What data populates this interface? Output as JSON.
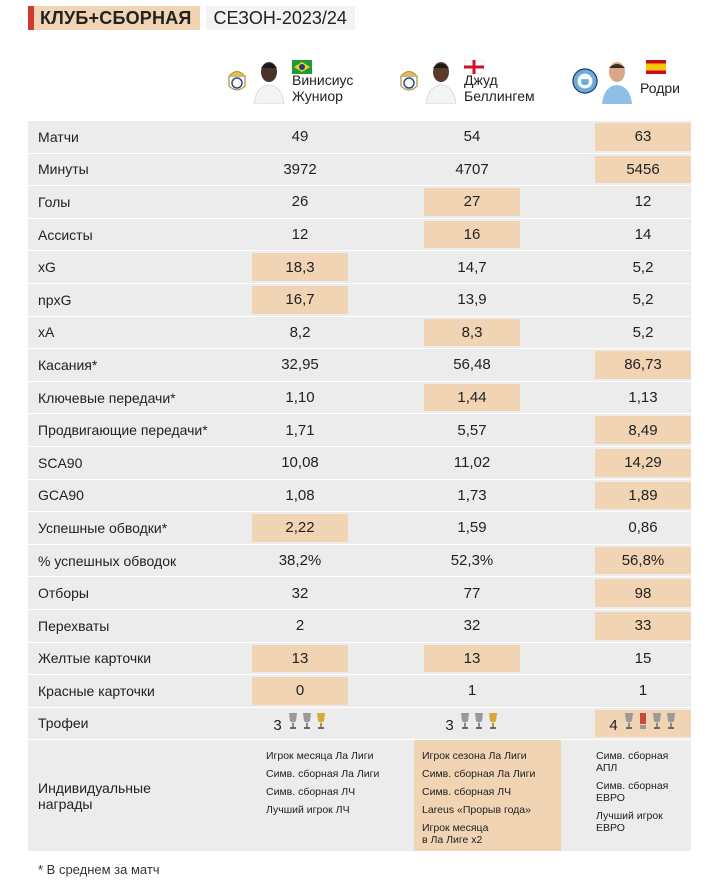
{
  "header": {
    "title": "КЛУБ+СБОРНАЯ",
    "season": "СЕЗОН-2023/24"
  },
  "players": [
    {
      "name_line1": "Винисиус",
      "name_line2": "Жуниор",
      "club": "Real Madrid",
      "flag": "brazil"
    },
    {
      "name_line1": "Джуд",
      "name_line2": "Беллингем",
      "club": "Real Madrid",
      "flag": "england"
    },
    {
      "name_line1": "Родри",
      "name_line2": "",
      "club": "Manchester City",
      "flag": "spain"
    }
  ],
  "rows": [
    {
      "label": "Матчи",
      "values": [
        "49",
        "54",
        "63"
      ],
      "hl": [
        false,
        false,
        true
      ]
    },
    {
      "label": "Минуты",
      "values": [
        "3972",
        "4707",
        "5456"
      ],
      "hl": [
        false,
        false,
        true
      ]
    },
    {
      "label": "Голы",
      "values": [
        "26",
        "27",
        "12"
      ],
      "hl": [
        false,
        true,
        false
      ]
    },
    {
      "label": "Ассисты",
      "values": [
        "12",
        "16",
        "14"
      ],
      "hl": [
        false,
        true,
        false
      ]
    },
    {
      "label": "xG",
      "values": [
        "18,3",
        "14,7",
        "5,2"
      ],
      "hl": [
        true,
        false,
        false
      ]
    },
    {
      "label": "npxG",
      "values": [
        "16,7",
        "13,9",
        "5,2"
      ],
      "hl": [
        true,
        false,
        false
      ]
    },
    {
      "label": "xA",
      "values": [
        "8,2",
        "8,3",
        "5,2"
      ],
      "hl": [
        false,
        true,
        false
      ]
    },
    {
      "label": "Касания*",
      "values": [
        "32,95",
        "56,48",
        "86,73"
      ],
      "hl": [
        false,
        false,
        true
      ]
    },
    {
      "label": "Ключевые передачи*",
      "values": [
        "1,10",
        "1,44",
        "1,13"
      ],
      "hl": [
        false,
        true,
        false
      ]
    },
    {
      "label": "Продвигающие передачи*",
      "values": [
        "1,71",
        "5,57",
        "8,49"
      ],
      "hl": [
        false,
        false,
        true
      ]
    },
    {
      "label": "SCA90",
      "values": [
        "10,08",
        "11,02",
        "14,29"
      ],
      "hl": [
        false,
        false,
        true
      ]
    },
    {
      "label": "GCA90",
      "values": [
        "1,08",
        "1,73",
        "1,89"
      ],
      "hl": [
        false,
        false,
        true
      ]
    },
    {
      "label": "Успешные обводки*",
      "values": [
        "2,22",
        "1,59",
        "0,86"
      ],
      "hl": [
        true,
        false,
        false
      ]
    },
    {
      "label": "% успешных обводок",
      "values": [
        "38,2%",
        "52,3%",
        "56,8%"
      ],
      "hl": [
        false,
        false,
        true
      ]
    },
    {
      "label": "Отборы",
      "values": [
        "32",
        "77",
        "98"
      ],
      "hl": [
        false,
        false,
        true
      ]
    },
    {
      "label": "Перехваты",
      "values": [
        "2",
        "32",
        "33"
      ],
      "hl": [
        false,
        false,
        true
      ]
    },
    {
      "label": "Желтые карточки",
      "values": [
        "13",
        "13",
        "15"
      ],
      "hl": [
        true,
        true,
        false
      ]
    },
    {
      "label": "Красные карточки",
      "values": [
        "0",
        "1",
        "1"
      ],
      "hl": [
        true,
        false,
        false
      ]
    }
  ],
  "trophies": {
    "label": "Трофеи",
    "counts": [
      "3",
      "3",
      "4"
    ],
    "hl": [
      false,
      false,
      true
    ]
  },
  "awards": {
    "label_line1": "Индивидуальные",
    "label_line2": "награды",
    "col1": [
      "Игрок месяца Ла Лиги",
      "Симв. сборная Ла Лиги",
      "Симв. сборная ЛЧ",
      "Лучший игрок ЛЧ"
    ],
    "col2": [
      "Игрок сезона Ла Лиги",
      "Симв. сборная Ла Лиги",
      "Симв. сборная ЛЧ",
      "Lareus «Прорыв года»",
      "Игрок месяца\nв Ла Лиге х2"
    ],
    "col3": [
      "Симв. сборная\nАПЛ",
      "Симв. сборная\nЕВРО",
      "Лучший игрок\nЕВРО"
    ]
  },
  "footnote": "* В среднем за матч",
  "colors": {
    "accent": "#d23a2f",
    "highlight": "#f1d4b4",
    "row_bg": "#ececec"
  }
}
